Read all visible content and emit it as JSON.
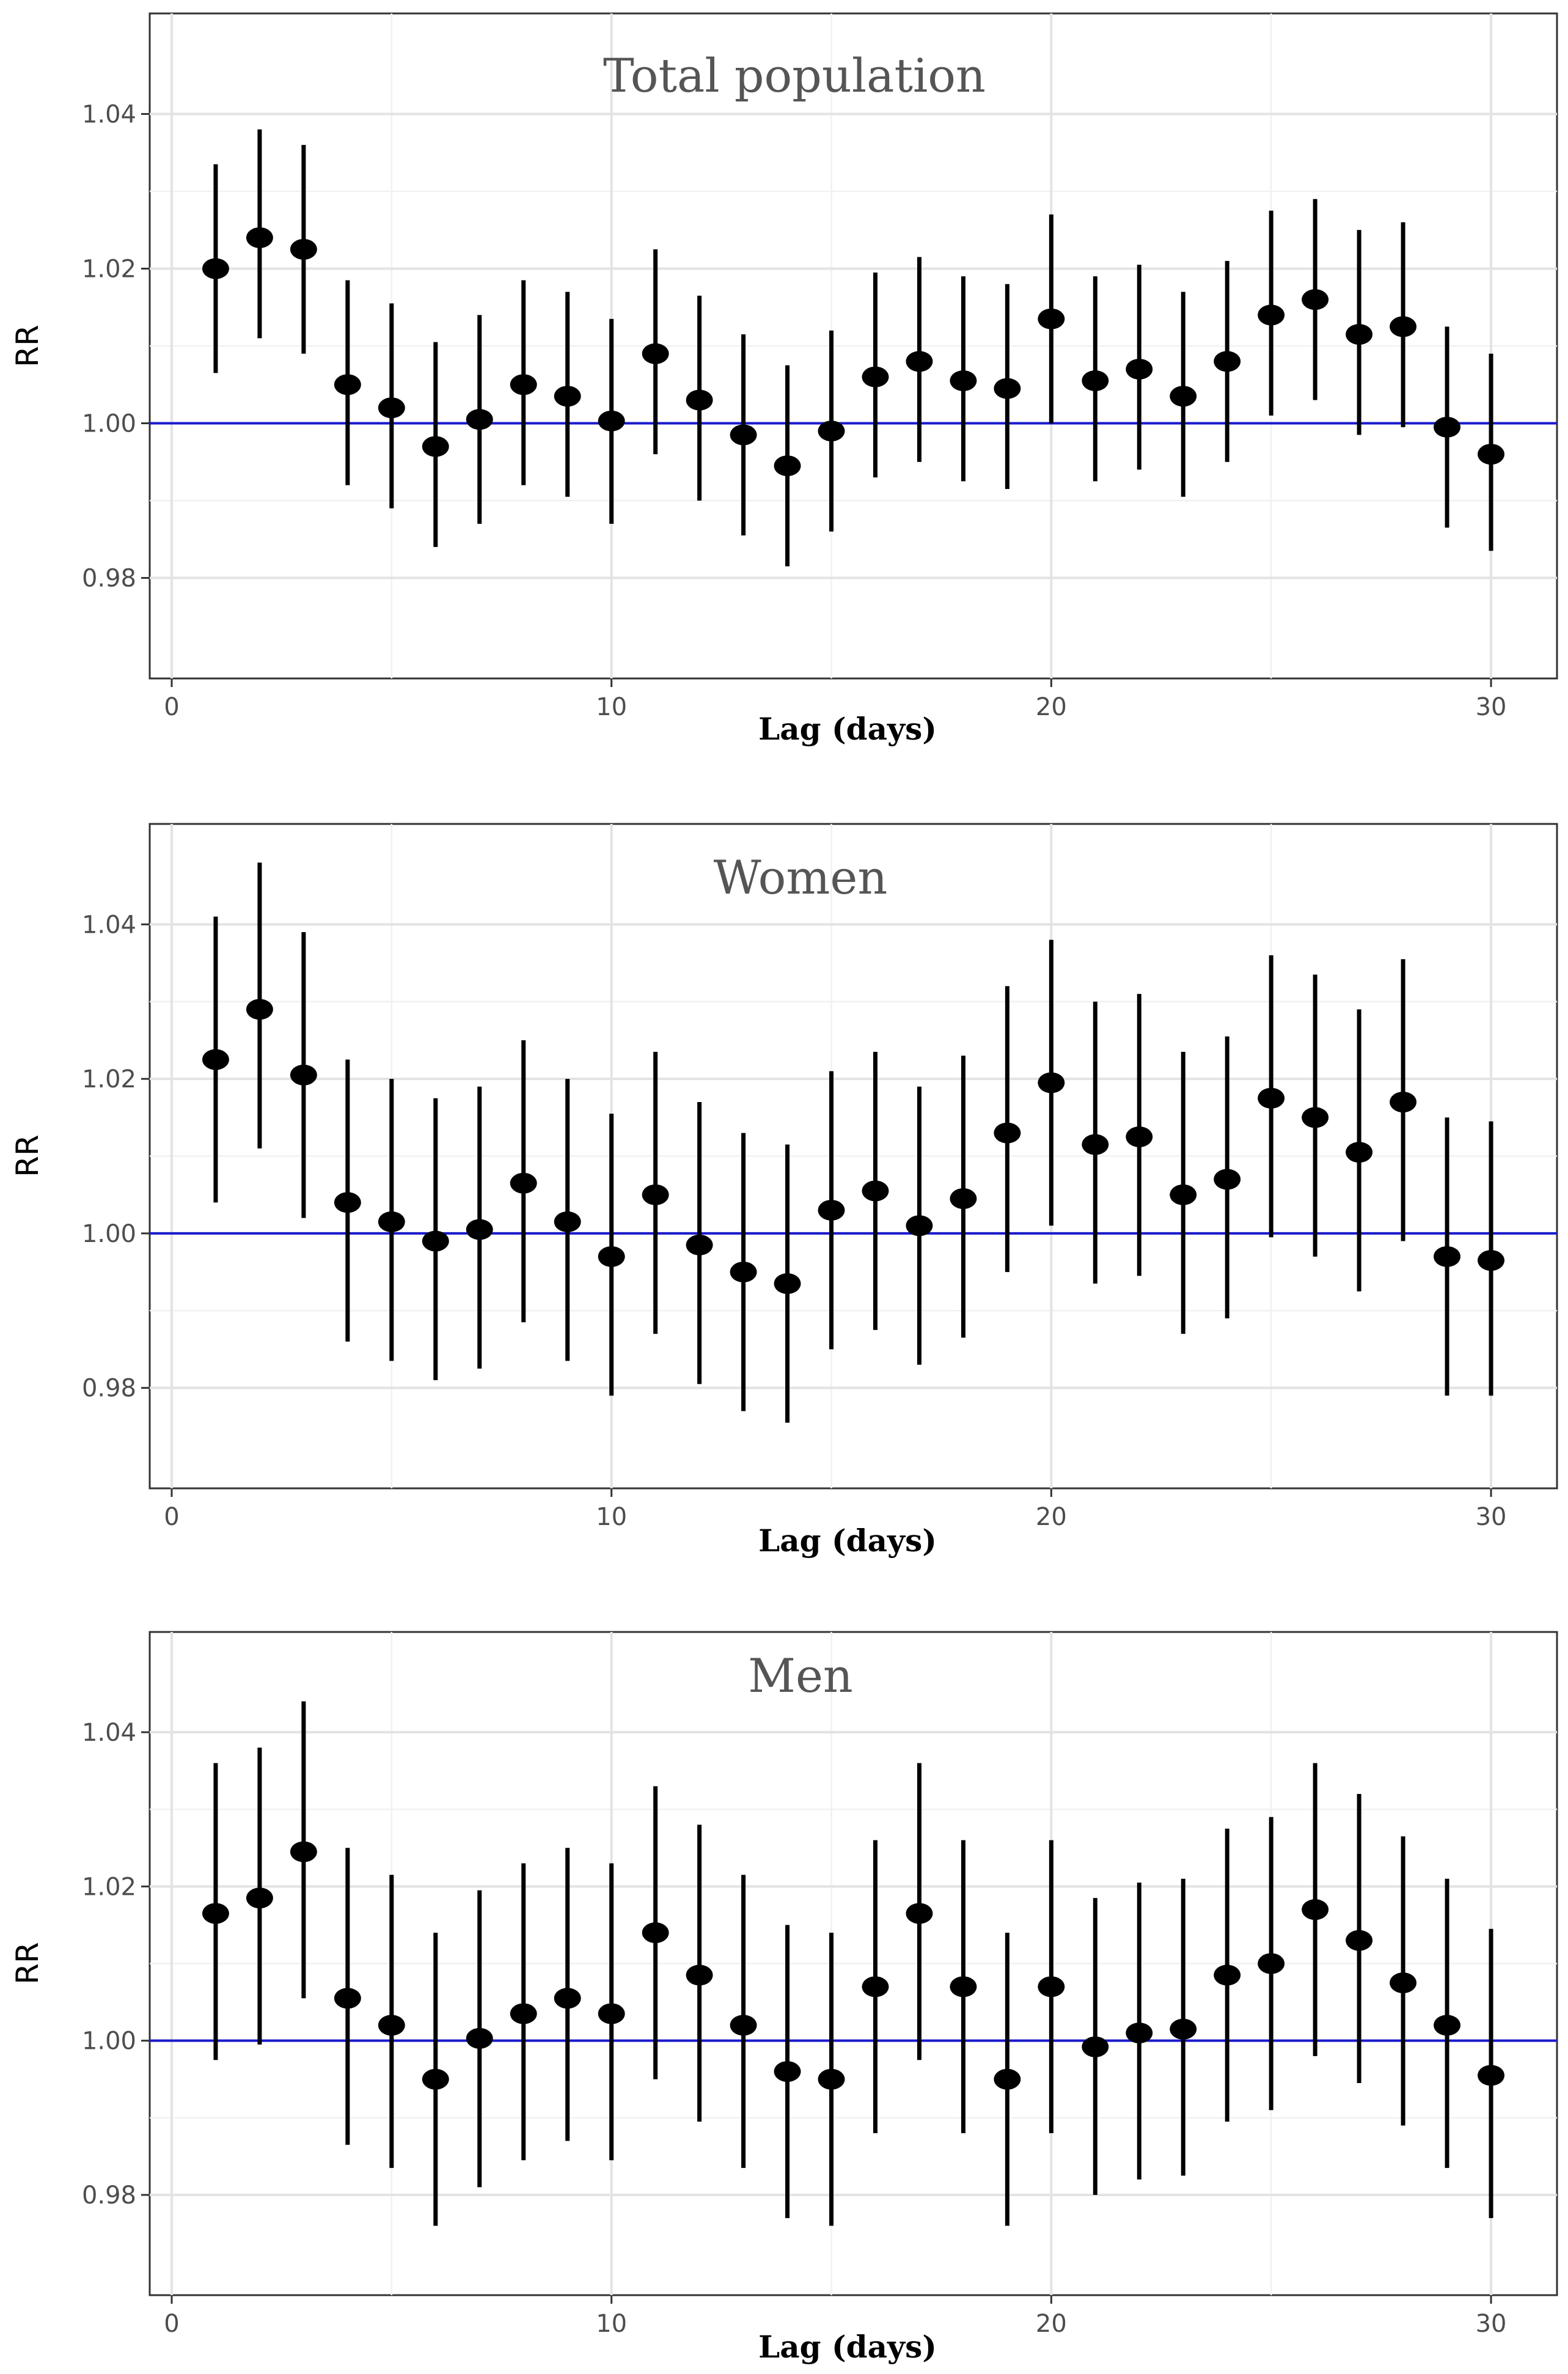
{
  "chart_data": [
    {
      "type": "scatter",
      "title": "Total population",
      "xlabel": "Lag (days)",
      "ylabel": "RR",
      "xlim": [
        -0.5,
        31.5
      ],
      "ylim": [
        0.967,
        1.053
      ],
      "xticks": [
        0,
        10,
        20,
        30
      ],
      "xtick_labels": [
        "0",
        "10",
        "20",
        "30"
      ],
      "yticks": [
        0.98,
        1.0,
        1.02,
        1.04
      ],
      "ytick_labels": [
        "0.98",
        "1.00",
        "1.02",
        "1.04"
      ],
      "reference_line": 1.0,
      "reference_color": "#1a1acc",
      "x": [
        1,
        2,
        3,
        4,
        5,
        6,
        7,
        8,
        9,
        10,
        11,
        12,
        13,
        14,
        15,
        16,
        17,
        18,
        19,
        20,
        21,
        22,
        23,
        24,
        25,
        26,
        27,
        28,
        29,
        30
      ],
      "rr": [
        1.02,
        1.024,
        1.0225,
        1.005,
        1.002,
        0.997,
        1.0005,
        1.005,
        1.0035,
        1.0003,
        1.009,
        1.003,
        0.9985,
        0.9945,
        0.999,
        1.006,
        1.008,
        1.0055,
        1.0045,
        1.0135,
        1.0055,
        1.007,
        1.0035,
        1.008,
        1.014,
        1.016,
        1.0115,
        1.0125,
        0.9995,
        0.996
      ],
      "lower": [
        1.0065,
        1.011,
        1.009,
        0.992,
        0.989,
        0.984,
        0.987,
        0.992,
        0.9905,
        0.987,
        0.996,
        0.99,
        0.9855,
        0.9815,
        0.986,
        0.993,
        0.995,
        0.9925,
        0.9915,
        1.0,
        0.9925,
        0.994,
        0.9905,
        0.995,
        1.001,
        1.003,
        0.9985,
        0.9995,
        0.9865,
        0.9835
      ],
      "upper": [
        1.0335,
        1.038,
        1.036,
        1.0185,
        1.0155,
        1.0105,
        1.014,
        1.0185,
        1.017,
        1.0135,
        1.0225,
        1.0165,
        1.0115,
        1.0075,
        1.012,
        1.0195,
        1.0215,
        1.019,
        1.018,
        1.027,
        1.019,
        1.0205,
        1.017,
        1.021,
        1.0275,
        1.029,
        1.025,
        1.026,
        1.0125,
        1.009
      ]
    },
    {
      "type": "scatter",
      "title": "Women",
      "xlabel": "Lag (days)",
      "ylabel": "RR",
      "xlim": [
        -0.5,
        31.5
      ],
      "ylim": [
        0.967,
        1.053
      ],
      "xticks": [
        0,
        10,
        20,
        30
      ],
      "xtick_labels": [
        "0",
        "10",
        "20",
        "30"
      ],
      "yticks": [
        0.98,
        1.0,
        1.02,
        1.04
      ],
      "ytick_labels": [
        "0.98",
        "1.00",
        "1.02",
        "1.04"
      ],
      "reference_line": 1.0,
      "reference_color": "#1a1acc",
      "x": [
        1,
        2,
        3,
        4,
        5,
        6,
        7,
        8,
        9,
        10,
        11,
        12,
        13,
        14,
        15,
        16,
        17,
        18,
        19,
        20,
        21,
        22,
        23,
        24,
        25,
        26,
        27,
        28,
        29,
        30
      ],
      "rr": [
        1.0225,
        1.029,
        1.0205,
        1.004,
        1.0015,
        0.999,
        1.0005,
        1.0065,
        1.0015,
        0.997,
        1.005,
        0.9985,
        0.995,
        0.9935,
        1.003,
        1.0055,
        1.001,
        1.0045,
        1.013,
        1.0195,
        1.0115,
        1.0125,
        1.005,
        1.007,
        1.0175,
        1.015,
        1.0105,
        1.017,
        0.997,
        0.9965
      ],
      "lower": [
        1.004,
        1.011,
        1.002,
        0.986,
        0.9835,
        0.981,
        0.9825,
        0.9885,
        0.9835,
        0.979,
        0.987,
        0.9805,
        0.977,
        0.9755,
        0.985,
        0.9875,
        0.983,
        0.9865,
        0.995,
        1.001,
        0.9935,
        0.9945,
        0.987,
        0.989,
        0.9995,
        0.997,
        0.9925,
        0.999,
        0.979,
        0.979
      ],
      "upper": [
        1.041,
        1.048,
        1.039,
        1.0225,
        1.02,
        1.0175,
        1.019,
        1.025,
        1.02,
        1.0155,
        1.0235,
        1.017,
        1.013,
        1.0115,
        1.021,
        1.0235,
        1.019,
        1.023,
        1.032,
        1.038,
        1.03,
        1.031,
        1.0235,
        1.0255,
        1.036,
        1.0335,
        1.029,
        1.0355,
        1.015,
        1.0145
      ]
    },
    {
      "type": "scatter",
      "title": "Men",
      "xlabel": "Lag (days)",
      "ylabel": "RR",
      "xlim": [
        -0.5,
        31.5
      ],
      "ylim": [
        0.967,
        1.053
      ],
      "xticks": [
        0,
        10,
        20,
        30
      ],
      "xtick_labels": [
        "0",
        "10",
        "20",
        "30"
      ],
      "yticks": [
        0.98,
        1.0,
        1.02,
        1.04
      ],
      "ytick_labels": [
        "0.98",
        "1.00",
        "1.02",
        "1.04"
      ],
      "reference_line": 1.0,
      "reference_color": "#1a1acc",
      "x": [
        1,
        2,
        3,
        4,
        5,
        6,
        7,
        8,
        9,
        10,
        11,
        12,
        13,
        14,
        15,
        16,
        17,
        18,
        19,
        20,
        21,
        22,
        23,
        24,
        25,
        26,
        27,
        28,
        29,
        30
      ],
      "rr": [
        1.0165,
        1.0185,
        1.0245,
        1.0055,
        1.002,
        0.995,
        1.0003,
        1.0035,
        1.0055,
        1.0035,
        1.014,
        1.0085,
        1.002,
        0.996,
        0.995,
        1.007,
        1.0165,
        1.007,
        0.995,
        1.007,
        0.9992,
        1.001,
        1.0015,
        1.0085,
        1.01,
        1.017,
        1.013,
        1.0075,
        1.002,
        0.9955
      ],
      "lower": [
        0.9975,
        0.9995,
        1.0055,
        0.9865,
        0.9835,
        0.976,
        0.981,
        0.9845,
        0.987,
        0.9845,
        0.995,
        0.9895,
        0.9835,
        0.977,
        0.976,
        0.988,
        0.9975,
        0.988,
        0.976,
        0.988,
        0.98,
        0.982,
        0.9825,
        0.9895,
        0.991,
        0.998,
        0.9945,
        0.989,
        0.9835,
        0.977
      ],
      "upper": [
        1.036,
        1.038,
        1.044,
        1.025,
        1.0215,
        1.014,
        1.0195,
        1.023,
        1.025,
        1.023,
        1.033,
        1.028,
        1.0215,
        1.015,
        1.014,
        1.026,
        1.036,
        1.026,
        1.014,
        1.026,
        1.0185,
        1.0205,
        1.021,
        1.0275,
        1.029,
        1.036,
        1.032,
        1.0265,
        1.021,
        1.0145
      ]
    }
  ]
}
